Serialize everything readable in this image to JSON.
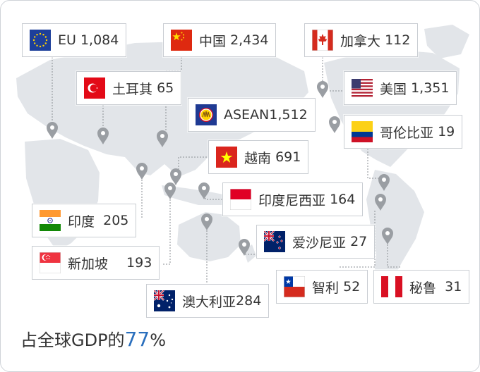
{
  "regions": [
    {
      "key": "eu",
      "name": "EU",
      "value": "1,084"
    },
    {
      "key": "china",
      "name": "中国",
      "value": "2,434"
    },
    {
      "key": "canada",
      "name": "加拿大",
      "value": "112"
    },
    {
      "key": "turkey",
      "name": "土耳其",
      "value": "65"
    },
    {
      "key": "usa",
      "name": "美国",
      "value": "1,351"
    },
    {
      "key": "asean",
      "name": "ASEAN",
      "value": "1,512"
    },
    {
      "key": "colombia",
      "name": "哥伦比亚",
      "value": "19"
    },
    {
      "key": "vietnam",
      "name": "越南",
      "value": "691"
    },
    {
      "key": "indonesia",
      "name": "印度尼西亚",
      "value": "164"
    },
    {
      "key": "india",
      "name": "印度",
      "value": "205"
    },
    {
      "key": "nz",
      "name": "爱沙尼亚",
      "value": "27"
    },
    {
      "key": "singapore",
      "name": "新加坡",
      "value": "193"
    },
    {
      "key": "chile",
      "name": "智利",
      "value": "52"
    },
    {
      "key": "peru",
      "name": "秘鲁",
      "value": "31"
    },
    {
      "key": "australia",
      "name": "澳大利亚",
      "value": "284"
    }
  ],
  "footer": {
    "prefix": "占全球GDP的",
    "percent": "77",
    "suffix": "%"
  },
  "colors": {
    "land": "#e2e5e9",
    "marker": "#9a9ea3",
    "leader": "#8a8e93",
    "accent": "#2a6fbd"
  }
}
